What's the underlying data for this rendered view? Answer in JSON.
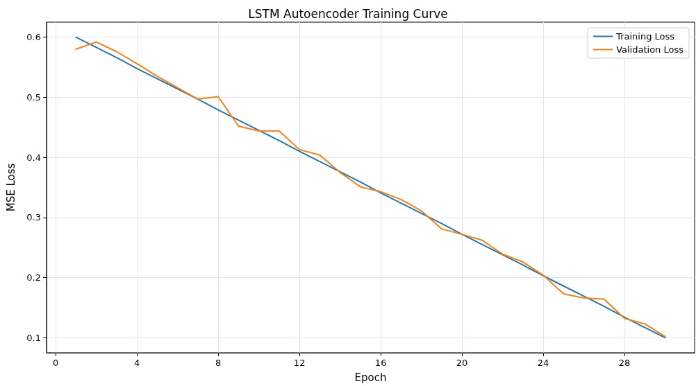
{
  "chart_data": {
    "type": "line",
    "title": "LSTM Autoencoder Training Curve",
    "xlabel": "Epoch",
    "ylabel": "MSE Loss",
    "x": [
      1,
      2,
      3,
      4,
      5,
      6,
      7,
      8,
      9,
      10,
      11,
      12,
      13,
      14,
      15,
      16,
      17,
      18,
      19,
      20,
      21,
      22,
      23,
      24,
      25,
      26,
      27,
      28,
      29,
      30
    ],
    "series": [
      {
        "name": "Training Loss",
        "color": "#1f77b4",
        "values": [
          0.6,
          0.583,
          0.566,
          0.548,
          0.531,
          0.514,
          0.497,
          0.479,
          0.462,
          0.445,
          0.428,
          0.41,
          0.393,
          0.376,
          0.359,
          0.341,
          0.324,
          0.307,
          0.29,
          0.272,
          0.255,
          0.238,
          0.221,
          0.203,
          0.186,
          0.169,
          0.152,
          0.134,
          0.117,
          0.1
        ]
      },
      {
        "name": "Validation Loss",
        "color": "#ff7f0e",
        "values": [
          0.58,
          0.592,
          0.576,
          0.556,
          0.535,
          0.516,
          0.497,
          0.501,
          0.452,
          0.444,
          0.444,
          0.413,
          0.404,
          0.375,
          0.351,
          0.343,
          0.33,
          0.311,
          0.281,
          0.272,
          0.262,
          0.239,
          0.226,
          0.204,
          0.173,
          0.166,
          0.164,
          0.132,
          0.123,
          0.102
        ]
      }
    ],
    "xlim": [
      -0.45,
      31.45
    ],
    "xticks": [
      0,
      4,
      8,
      12,
      16,
      20,
      24,
      28
    ],
    "ylim": [
      0.075,
      0.625
    ],
    "yticks": [
      0.1,
      0.2,
      0.3,
      0.4,
      0.5,
      0.6
    ],
    "grid": true,
    "legend": "top right",
    "marker": "none",
    "line_style": "solid"
  }
}
